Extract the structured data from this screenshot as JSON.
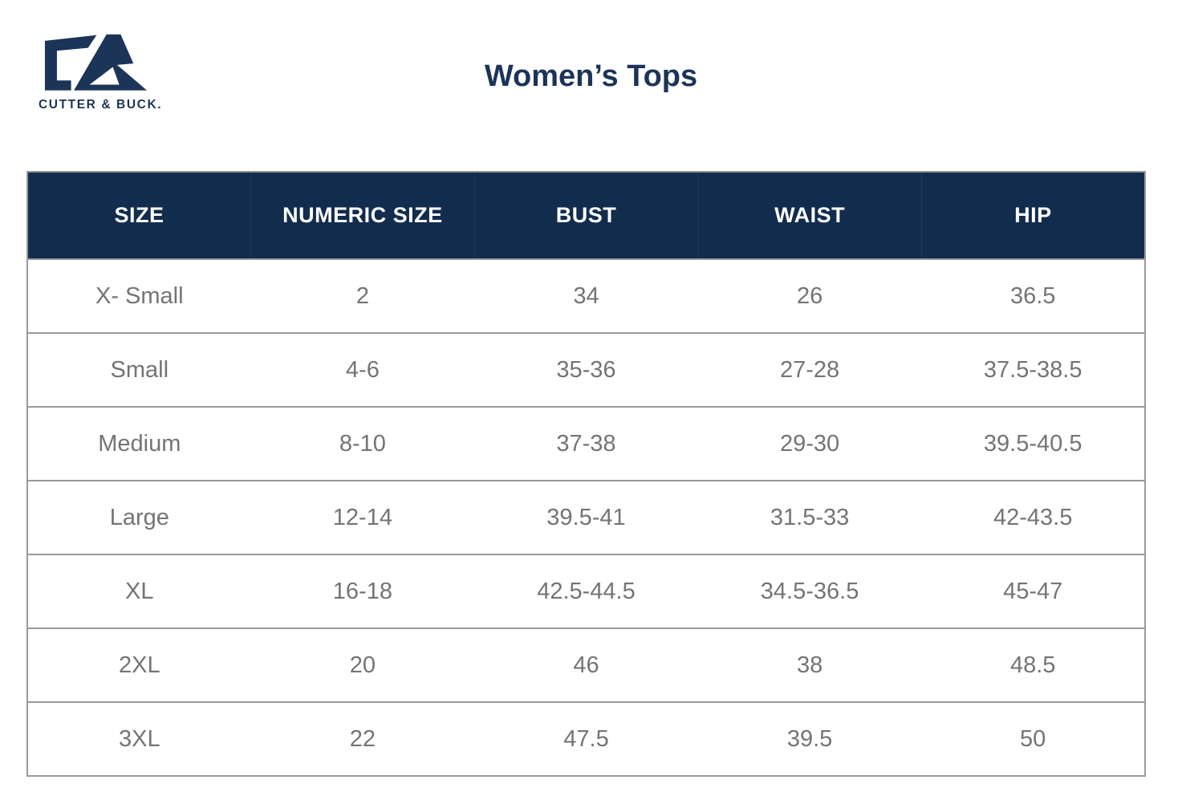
{
  "brand": {
    "wordmark": "CUTTER & BUCK.",
    "logo_icon": "cutter-buck-cb-monogram",
    "navy": "#1c3457"
  },
  "title": "Women’s Tops",
  "table": {
    "headers": [
      "SIZE",
      "NUMERIC SIZE",
      "BUST",
      "WAIST",
      "HIP"
    ],
    "rows": [
      [
        "X- Small",
        "2",
        "34",
        "26",
        "36.5"
      ],
      [
        "Small",
        "4-6",
        "35-36",
        "27-28",
        "37.5-38.5"
      ],
      [
        "Medium",
        "8-10",
        "37-38",
        "29-30",
        "39.5-40.5"
      ],
      [
        "Large",
        "12-14",
        "39.5-41",
        "31.5-33",
        "42-43.5"
      ],
      [
        "XL",
        "16-18",
        "42.5-44.5",
        "34.5-36.5",
        "45-47"
      ],
      [
        "2XL",
        "20",
        "46",
        "38",
        "48.5"
      ],
      [
        "3XL",
        "22",
        "47.5",
        "39.5",
        "50"
      ]
    ],
    "colors": {
      "header_bg": "#122c4e",
      "header_text": "#ffffff",
      "body_text": "#737476",
      "border": "#9a9a9a"
    }
  },
  "chart_data": {
    "type": "table",
    "title": "Women’s Tops",
    "columns": [
      "SIZE",
      "NUMERIC SIZE",
      "BUST",
      "WAIST",
      "HIP"
    ],
    "rows": [
      [
        "X- Small",
        "2",
        "34",
        "26",
        "36.5"
      ],
      [
        "Small",
        "4-6",
        "35-36",
        "27-28",
        "37.5-38.5"
      ],
      [
        "Medium",
        "8-10",
        "37-38",
        "29-30",
        "39.5-40.5"
      ],
      [
        "Large",
        "12-14",
        "39.5-41",
        "31.5-33",
        "42-43.5"
      ],
      [
        "XL",
        "16-18",
        "42.5-44.5",
        "34.5-36.5",
        "45-47"
      ],
      [
        "2XL",
        "20",
        "46",
        "38",
        "48.5"
      ],
      [
        "3XL",
        "22",
        "47.5",
        "39.5",
        "50"
      ]
    ]
  }
}
